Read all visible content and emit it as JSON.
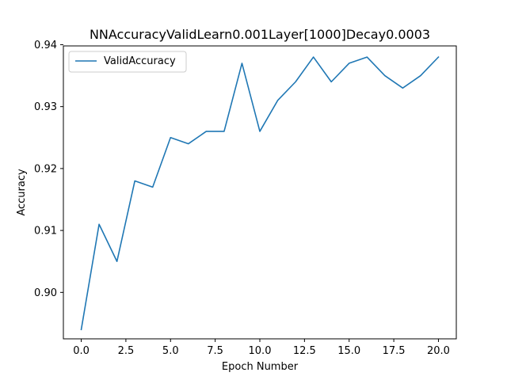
{
  "chart_data": {
    "type": "line",
    "title": "NNAccuracyValidLearn0.001Layer[1000]Decay0.0003",
    "xlabel": "Epoch Number",
    "ylabel": "Accuracy",
    "xlim": [
      -1.0,
      21.0
    ],
    "ylim": [
      0.8925,
      0.9398
    ],
    "xticks": [
      "0.0",
      "2.5",
      "5.0",
      "7.5",
      "10.0",
      "12.5",
      "15.0",
      "17.5",
      "20.0"
    ],
    "yticks": [
      "0.90",
      "0.91",
      "0.92",
      "0.93",
      "0.94"
    ],
    "grid": false,
    "legend_position": "top-left",
    "x": [
      0,
      1,
      2,
      3,
      4,
      5,
      6,
      7,
      8,
      9,
      10,
      11,
      12,
      13,
      14,
      15,
      16,
      17,
      18,
      19,
      20
    ],
    "series": [
      {
        "name": "ValidAccuracy",
        "color": "#1f77b4",
        "values": [
          0.894,
          0.911,
          0.905,
          0.918,
          0.917,
          0.925,
          0.924,
          0.926,
          0.926,
          0.937,
          0.926,
          0.931,
          0.934,
          0.938,
          0.934,
          0.937,
          0.938,
          0.935,
          0.933,
          0.935,
          0.938
        ]
      }
    ]
  }
}
